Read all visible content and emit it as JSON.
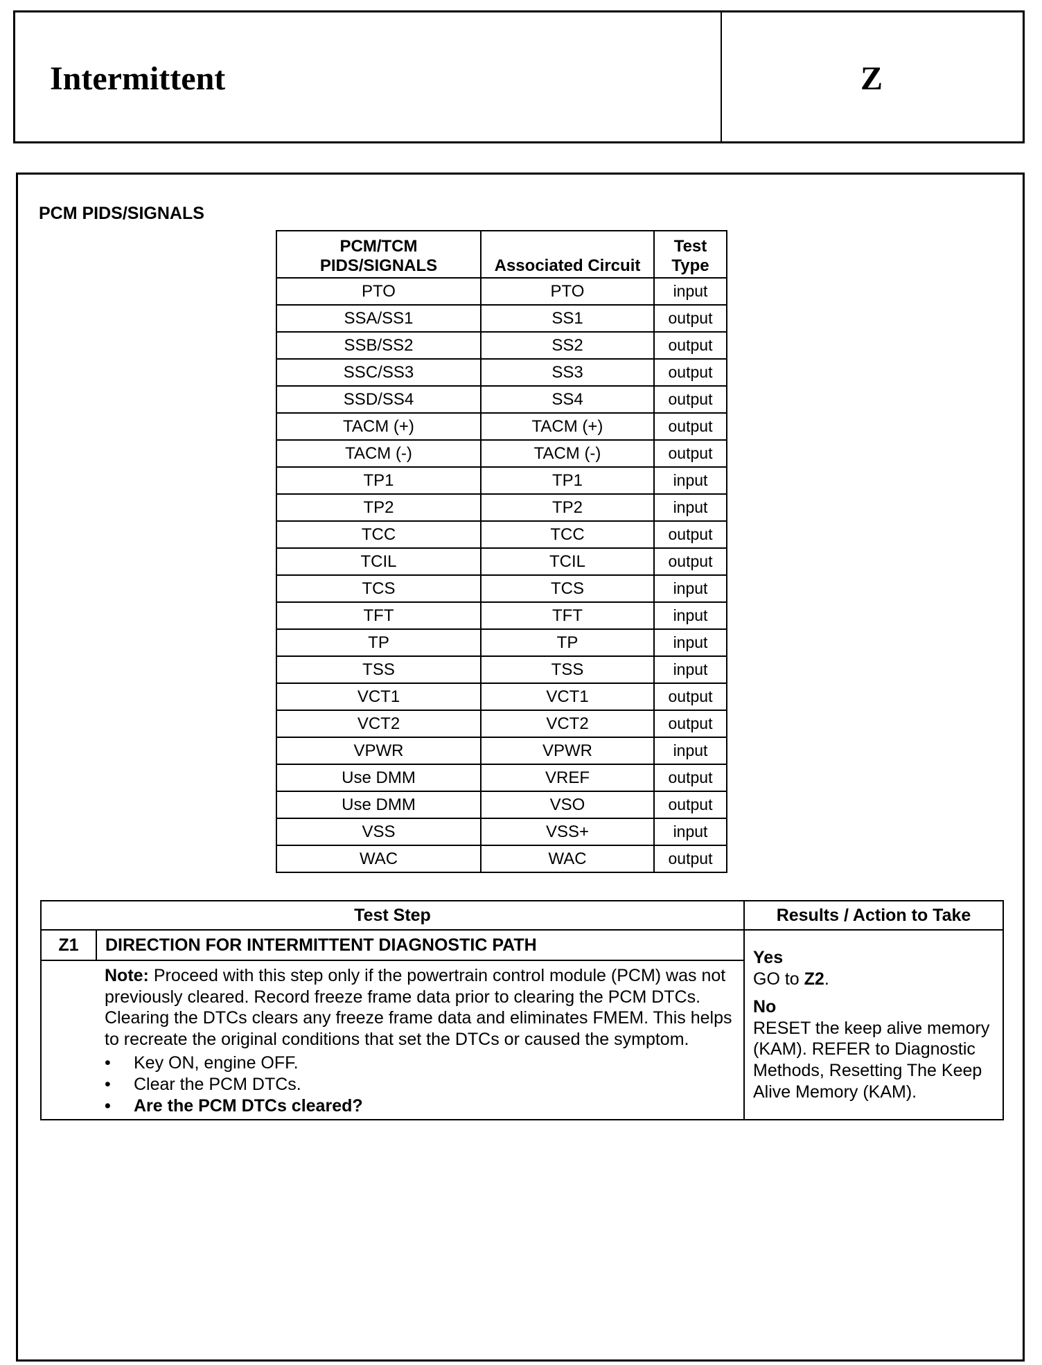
{
  "header": {
    "title": "Intermittent",
    "code": "Z"
  },
  "section_title": "PCM PIDS/SIGNALS",
  "pids_table": {
    "columns": [
      "PCM/TCM PIDS/SIGNALS",
      "Associated Circuit",
      "Test Type"
    ],
    "col0_line1": "PCM/TCM",
    "col0_line2": "PIDS/SIGNALS",
    "col2_line1": "Test",
    "col2_line2": "Type",
    "rows": [
      [
        "PTO",
        "PTO",
        "input"
      ],
      [
        "SSA/SS1",
        "SS1",
        "output"
      ],
      [
        "SSB/SS2",
        "SS2",
        "output"
      ],
      [
        "SSC/SS3",
        "SS3",
        "output"
      ],
      [
        "SSD/SS4",
        "SS4",
        "output"
      ],
      [
        "TACM (+)",
        "TACM (+)",
        "output"
      ],
      [
        "TACM (-)",
        "TACM (-)",
        "output"
      ],
      [
        "TP1",
        "TP1",
        "input"
      ],
      [
        "TP2",
        "TP2",
        "input"
      ],
      [
        "TCC",
        "TCC",
        "output"
      ],
      [
        "TCIL",
        "TCIL",
        "output"
      ],
      [
        "TCS",
        "TCS",
        "input"
      ],
      [
        "TFT",
        "TFT",
        "input"
      ],
      [
        "TP",
        "TP",
        "input"
      ],
      [
        "TSS",
        "TSS",
        "input"
      ],
      [
        "VCT1",
        "VCT1",
        "output"
      ],
      [
        "VCT2",
        "VCT2",
        "output"
      ],
      [
        "VPWR",
        "VPWR",
        "input"
      ],
      [
        "Use DMM",
        "VREF",
        "output"
      ],
      [
        "Use DMM",
        "VSO",
        "output"
      ],
      [
        "VSS",
        "VSS+",
        "input"
      ],
      [
        "WAC",
        "WAC",
        "output"
      ]
    ]
  },
  "test_table": {
    "col_test_step": "Test Step",
    "col_results": "Results / Action to Take",
    "step_id": "Z1",
    "step_title": "DIRECTION FOR INTERMITTENT DIAGNOSTIC PATH",
    "note_label": "Note:",
    "note_text": " Proceed with this step only if the powertrain control module (PCM) was not previously cleared. Record freeze frame data prior to clearing the PCM DTCs. Clearing the DTCs clears any freeze frame data and eliminates FMEM. This helps to recreate the original conditions that set the DTCs or caused the symptom.",
    "bullets": [
      "Key ON, engine OFF.",
      "Clear the PCM DTCs.",
      "Are the PCM DTCs cleared?"
    ],
    "yes_label": "Yes",
    "yes_action_prefix": "GO to ",
    "yes_action_target": "Z2",
    "yes_action_suffix": ".",
    "no_label": "No",
    "no_action": "RESET the keep alive memory (KAM). REFER to Diagnostic Methods, Resetting The Keep Alive Memory (KAM)."
  }
}
